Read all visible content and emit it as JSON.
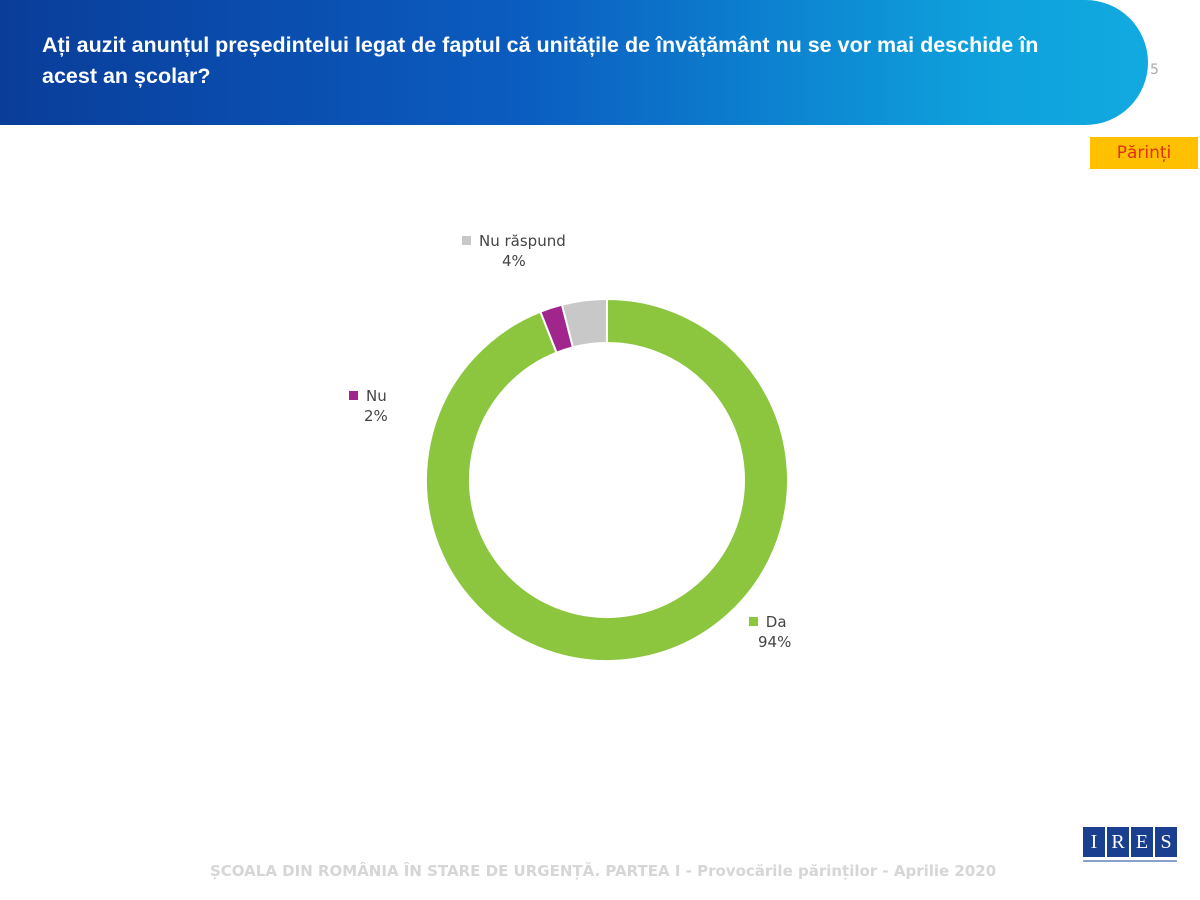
{
  "header": {
    "title": "Ați auzit anunțul președintelui legat de faptul că unitățile de învățământ nu se vor mai deschide în acest an școlar?",
    "page_number": "5"
  },
  "badge": "Părinți",
  "footer": "ȘCOALA DIN ROMÂNIA ÎN STARE DE URGENȚĂ. PARTEA I - Provocările părinților - Aprilie 2020",
  "logo": "IRES",
  "chart_data": {
    "type": "pie",
    "donut": true,
    "title": "Ați auzit anunțul președintelui legat de faptul că unitățile de învățământ nu se vor mai deschide în acest an școlar?",
    "categories": [
      "Da",
      "Nu",
      "Nu răspund"
    ],
    "values": [
      94,
      2,
      4
    ],
    "labels": [
      "94%",
      "2%",
      "4%"
    ],
    "colors": [
      "#8cc63f",
      "#a0258c",
      "#c8c8c8"
    ]
  }
}
